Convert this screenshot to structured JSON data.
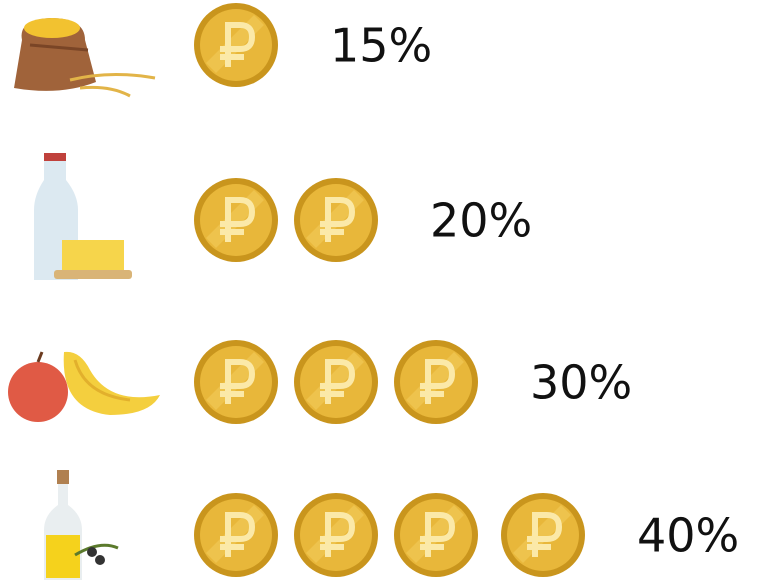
{
  "chart_data": {
    "type": "pictogram",
    "values": [
      15,
      20,
      30,
      40
    ],
    "value_labels": [
      "15%",
      "20%",
      "30%",
      "40%"
    ],
    "coins": [
      1,
      2,
      3,
      4
    ]
  }
}
